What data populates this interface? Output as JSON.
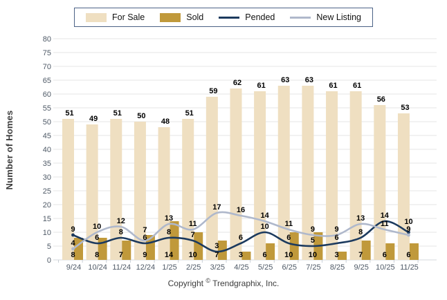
{
  "footer": {
    "copyright_prefix": "Copyright",
    "copyright_symbol": "©",
    "copyright_suffix": " Trendgraphix, Inc."
  },
  "chart_data": {
    "type": "bar",
    "subtype": "grouped bars with smoothed overlay lines",
    "title": "",
    "xlabel": "",
    "ylabel": "Number of Homes",
    "ylim": [
      0,
      80
    ],
    "ytick_step": 5,
    "grid": true,
    "legend_position": "top",
    "categories": [
      "9/24",
      "10/24",
      "11/24",
      "12/24",
      "1/25",
      "2/25",
      "3/25",
      "4/25",
      "5/25",
      "6/25",
      "7/25",
      "8/25",
      "9/25",
      "10/25",
      "11/25"
    ],
    "series": [
      {
        "name": "For Sale",
        "type": "bar",
        "color": "#EFDFC1",
        "values": [
          51,
          49,
          51,
          50,
          48,
          51,
          59,
          62,
          61,
          63,
          63,
          61,
          61,
          56,
          53
        ]
      },
      {
        "name": "Sold",
        "type": "bar",
        "color": "#C0993B",
        "values": [
          8,
          8,
          7,
          9,
          14,
          10,
          7,
          3,
          6,
          10,
          10,
          3,
          7,
          6,
          6
        ]
      },
      {
        "name": "Pended",
        "type": "line",
        "color": "#1C3A5E",
        "values": [
          9,
          6,
          8,
          6,
          8,
          7,
          3,
          6,
          10,
          6,
          5,
          6,
          8,
          14,
          10
        ]
      },
      {
        "name": "New Listing",
        "type": "line",
        "color": "#AFB8CB",
        "values": [
          4,
          10,
          12,
          7,
          13,
          11,
          17,
          16,
          14,
          11,
          9,
          9,
          13,
          11,
          9
        ]
      }
    ],
    "style": {
      "grid_color": "#E6E6E6",
      "zero_line_color": "#D6D9DD",
      "tick_color": "#C9CFD6",
      "axis_label_color": "#4E5966",
      "value_label_color": "#000000",
      "legend_border_color": "#4a6185"
    }
  }
}
